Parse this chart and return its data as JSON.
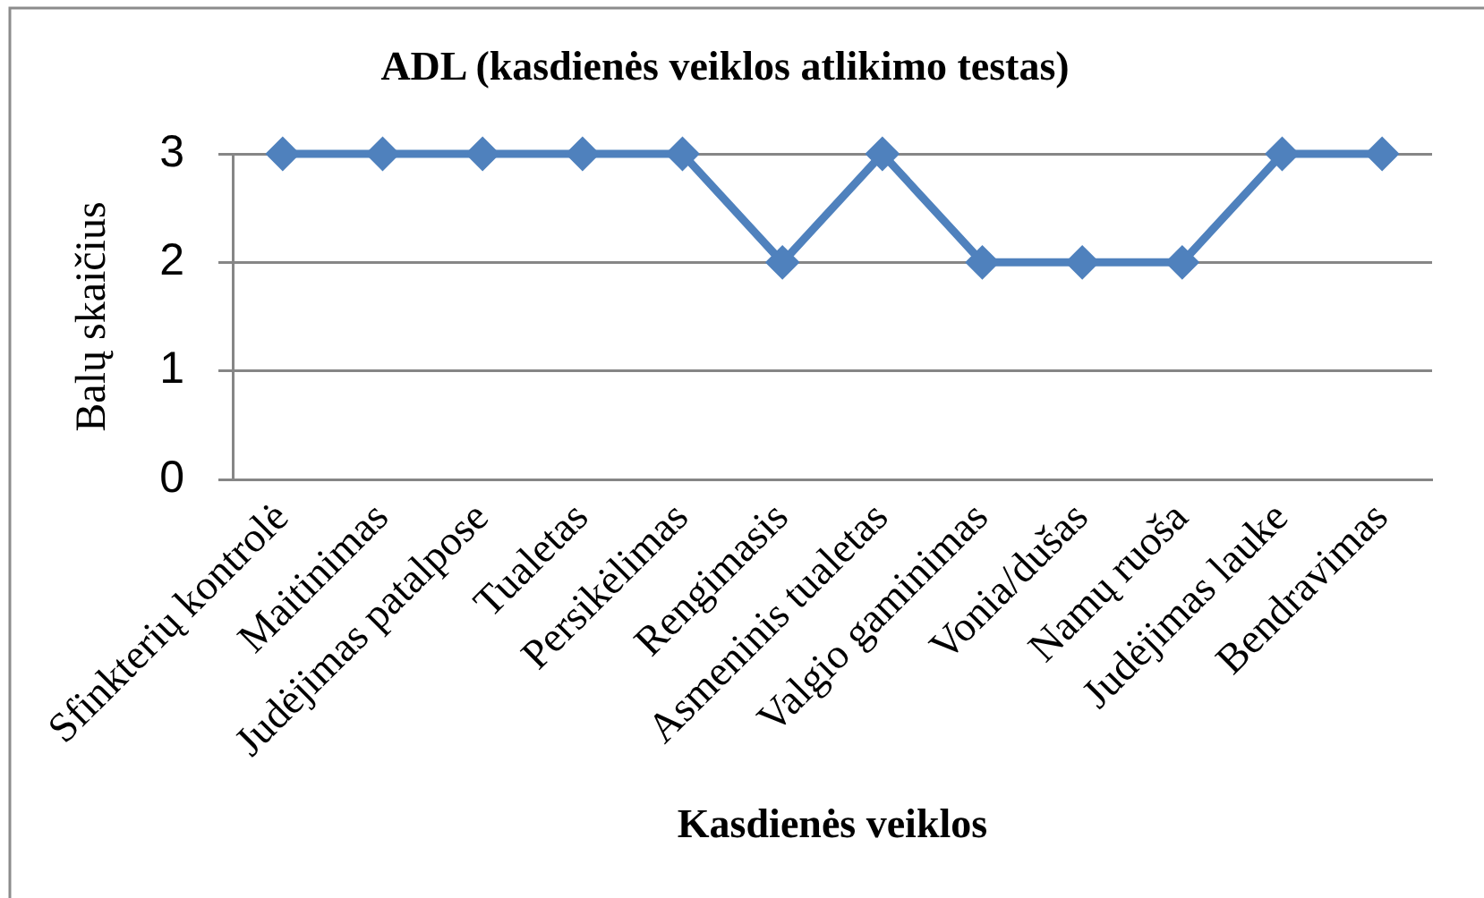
{
  "chart_data": {
    "type": "line",
    "title": "ADL (kasdienės veiklos atlikimo testas)",
    "xlabel": "Kasdienės veiklos",
    "ylabel": "Balų skaičius",
    "categories": [
      "Sfinkterių kontrolė",
      "Maitinimas",
      "Judėjimas patalpose",
      "Tualetas",
      "Persikėlimas",
      "Rengimasis",
      "Asmeninis tualetas",
      "Valgio gaminimas",
      "Vonia/dušas",
      "Namų ruoša",
      "Judėjimas lauke",
      "Bendravimas"
    ],
    "values": [
      3,
      3,
      3,
      3,
      3,
      2,
      3,
      2,
      2,
      2,
      3,
      3
    ],
    "color": "#4f81bd",
    "ylim": [
      0,
      3
    ],
    "yticks": [
      0,
      1,
      2,
      3
    ],
    "grid": "y",
    "marker": "diamond",
    "line_style": "solid"
  }
}
